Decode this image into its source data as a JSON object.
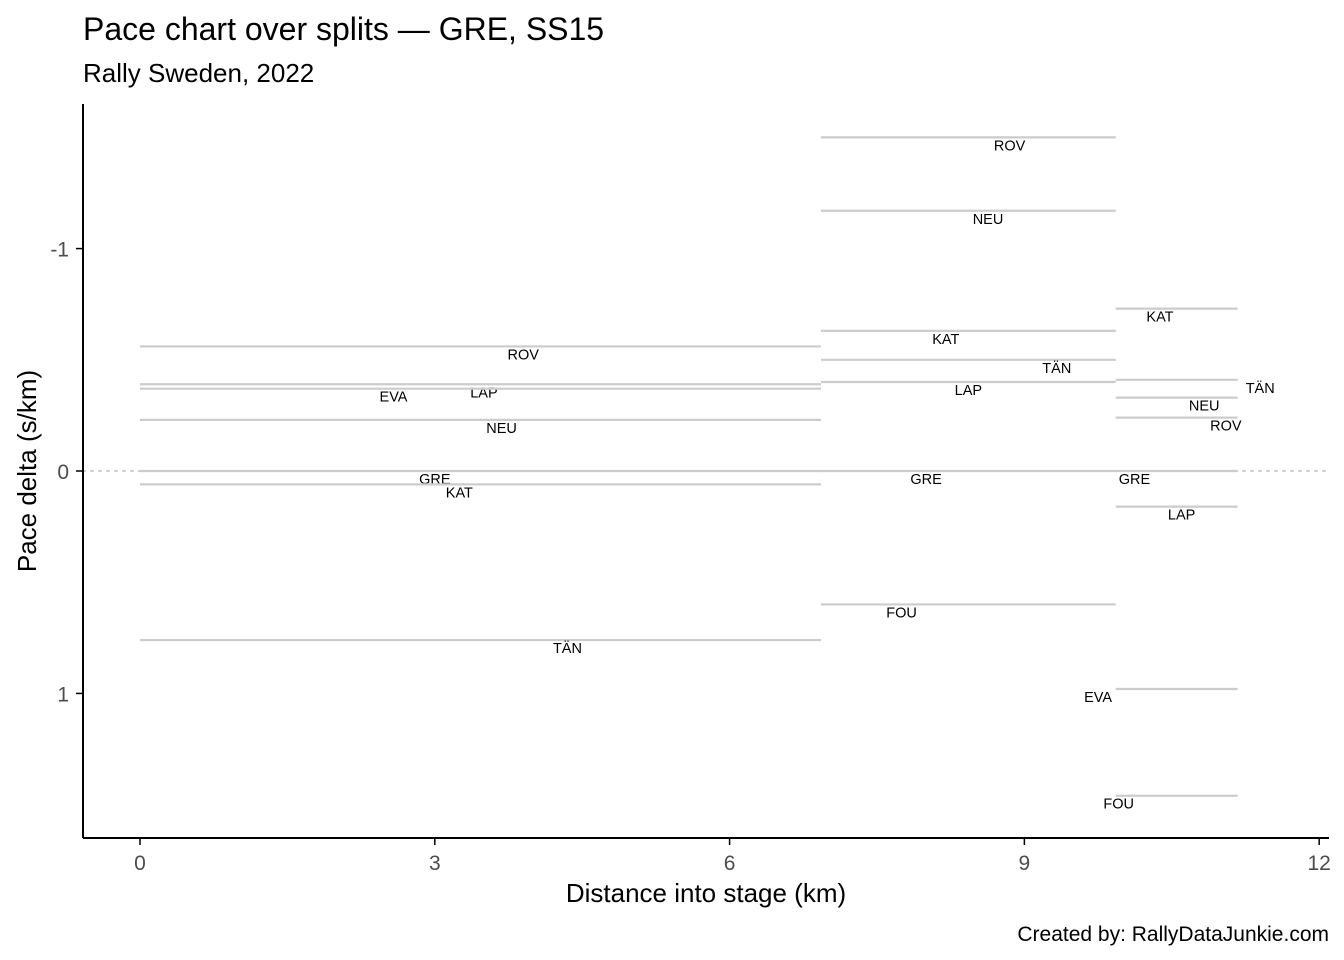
{
  "chart_data": {
    "type": "line",
    "title": "Pace chart over splits — GRE, SS15",
    "subtitle": "Rally Sweden, 2022",
    "xlabel": "Distance into stage (km)",
    "ylabel": "Pace delta (s/km)",
    "caption": "Created by: RallyDataJunkie.com",
    "xlim": [
      -0.58,
      12.1
    ],
    "ylim": [
      1.65,
      -1.65
    ],
    "y_reversed": true,
    "x_ticks": [
      0,
      3,
      6,
      9,
      12
    ],
    "y_ticks": [
      -1,
      0,
      1
    ],
    "zero_line": true,
    "grid": false,
    "colors": {
      "segment": "#cccccc",
      "zero_line": "#cccccc",
      "axis": "#000000",
      "tick_label": "#4d4d4d",
      "text": "#000000"
    },
    "splits": [
      {
        "start": 0,
        "end": 6.93,
        "segments": [
          {
            "driver": "ROV",
            "pace": -0.56,
            "label_x": 3.9
          },
          {
            "driver": "LAP",
            "pace": -0.39,
            "label_x": 3.5
          },
          {
            "driver": "EVA",
            "pace": -0.37,
            "label_x": 2.58
          },
          {
            "driver": "NEU",
            "pace": -0.23,
            "label_x": 3.68
          },
          {
            "driver": "GRE",
            "pace": 0.0,
            "label_x": 3.0
          },
          {
            "driver": "KAT",
            "pace": 0.06,
            "label_x": 3.25
          },
          {
            "driver": "TÄN",
            "pace": 0.76,
            "label_x": 4.35
          }
        ]
      },
      {
        "start": 6.93,
        "end": 9.93,
        "segments": [
          {
            "driver": "ROV",
            "pace": -1.5,
            "label_x": 8.85
          },
          {
            "driver": "NEU",
            "pace": -1.17,
            "label_x": 8.63
          },
          {
            "driver": "KAT",
            "pace": -0.63,
            "label_x": 8.2
          },
          {
            "driver": "TÄN",
            "pace": -0.5,
            "label_x": 9.33
          },
          {
            "driver": "LAP",
            "pace": -0.4,
            "label_x": 8.43
          },
          {
            "driver": "GRE",
            "pace": 0.0,
            "label_x": 8.0
          },
          {
            "driver": "FOU",
            "pace": 0.6,
            "label_x": 7.75
          }
        ]
      },
      {
        "start": 9.93,
        "end": 11.17,
        "segments": [
          {
            "driver": "KAT",
            "pace": -0.73,
            "label_x": 10.38
          },
          {
            "driver": "TÄN",
            "pace": -0.41,
            "label_x": 11.4
          },
          {
            "driver": "NEU",
            "pace": -0.33,
            "label_x": 10.83
          },
          {
            "driver": "ROV",
            "pace": -0.24,
            "label_x": 11.05
          },
          {
            "driver": "GRE",
            "pace": 0.0,
            "label_x": 10.12
          },
          {
            "driver": "LAP",
            "pace": 0.16,
            "label_x": 10.6
          },
          {
            "driver": "EVA",
            "pace": 0.98,
            "label_x": 9.75
          },
          {
            "driver": "FOU",
            "pace": 1.46,
            "label_x": 9.96
          }
        ]
      }
    ]
  }
}
